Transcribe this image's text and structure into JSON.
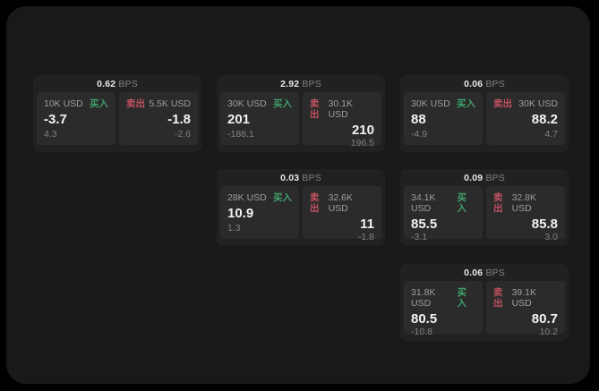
{
  "labels": {
    "bps_unit": "BPS",
    "buy": "买入",
    "sell": "卖出"
  },
  "colors": {
    "buy": "#40a06a",
    "sell": "#c05260",
    "panel_bg": "#191919",
    "card_bg": "#212121",
    "side_bg": "#2b2b2b"
  },
  "cards": [
    {
      "row": 1,
      "col": 1,
      "bps": "0.62",
      "buy": {
        "amount": "10K USD",
        "value": "-3.7",
        "sub": "4.3"
      },
      "sell": {
        "amount": "5.5K USD",
        "value": "-1.8",
        "sub": "-2.6"
      }
    },
    {
      "row": 1,
      "col": 2,
      "bps": "2.92",
      "buy": {
        "amount": "30K USD",
        "value": "201",
        "sub": "-188.1"
      },
      "sell": {
        "amount": "30.1K USD",
        "value": "210",
        "sub": "196.5"
      }
    },
    {
      "row": 1,
      "col": 3,
      "bps": "0.06",
      "buy": {
        "amount": "30K USD",
        "value": "88",
        "sub": "-4.9"
      },
      "sell": {
        "amount": "30K USD",
        "value": "88.2",
        "sub": "4.7"
      }
    },
    {
      "row": 2,
      "col": 2,
      "bps": "0.03",
      "buy": {
        "amount": "28K USD",
        "value": "10.9",
        "sub": "1.3"
      },
      "sell": {
        "amount": "32.6K USD",
        "value": "11",
        "sub": "-1.8"
      }
    },
    {
      "row": 2,
      "col": 3,
      "bps": "0.09",
      "buy": {
        "amount": "34.1K USD",
        "value": "85.5",
        "sub": "-3.1"
      },
      "sell": {
        "amount": "32.8K USD",
        "value": "85.8",
        "sub": "3.0"
      }
    },
    {
      "row": 3,
      "col": 3,
      "bps": "0.06",
      "buy": {
        "amount": "31.8K USD",
        "value": "80.5",
        "sub": "-10.8"
      },
      "sell": {
        "amount": "39.1K USD",
        "value": "80.7",
        "sub": "10.2"
      }
    }
  ]
}
